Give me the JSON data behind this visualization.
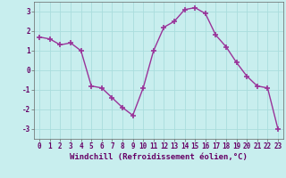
{
  "x": [
    0,
    1,
    2,
    3,
    4,
    5,
    6,
    7,
    8,
    9,
    10,
    11,
    12,
    13,
    14,
    15,
    16,
    17,
    18,
    19,
    20,
    21,
    22,
    23
  ],
  "y": [
    1.7,
    1.6,
    1.3,
    1.4,
    1.0,
    -0.8,
    -0.9,
    -1.4,
    -1.9,
    -2.3,
    -0.9,
    1.0,
    2.2,
    2.5,
    3.1,
    3.2,
    2.9,
    1.8,
    1.2,
    0.4,
    -0.3,
    -0.8,
    -0.9,
    -3.0
  ],
  "line_color": "#993399",
  "marker": "+",
  "marker_size": 4,
  "marker_lw": 1.2,
  "bg_color": "#c8eeee",
  "grid_color": "#aadddd",
  "xlabel": "Windchill (Refroidissement éolien,°C)",
  "xlabel_color": "#660066",
  "tick_color": "#660066",
  "label_color": "#660066",
  "ylim": [
    -3.5,
    3.5
  ],
  "xlim": [
    -0.5,
    23.5
  ],
  "yticks": [
    -3,
    -2,
    -1,
    0,
    1,
    2,
    3
  ],
  "xticks": [
    0,
    1,
    2,
    3,
    4,
    5,
    6,
    7,
    8,
    9,
    10,
    11,
    12,
    13,
    14,
    15,
    16,
    17,
    18,
    19,
    20,
    21,
    22,
    23
  ],
  "linewidth": 1.0,
  "tick_fontsize": 5.5,
  "xlabel_fontsize": 6.5,
  "ylabel_fontsize": 6.5,
  "spine_color": "#666666"
}
